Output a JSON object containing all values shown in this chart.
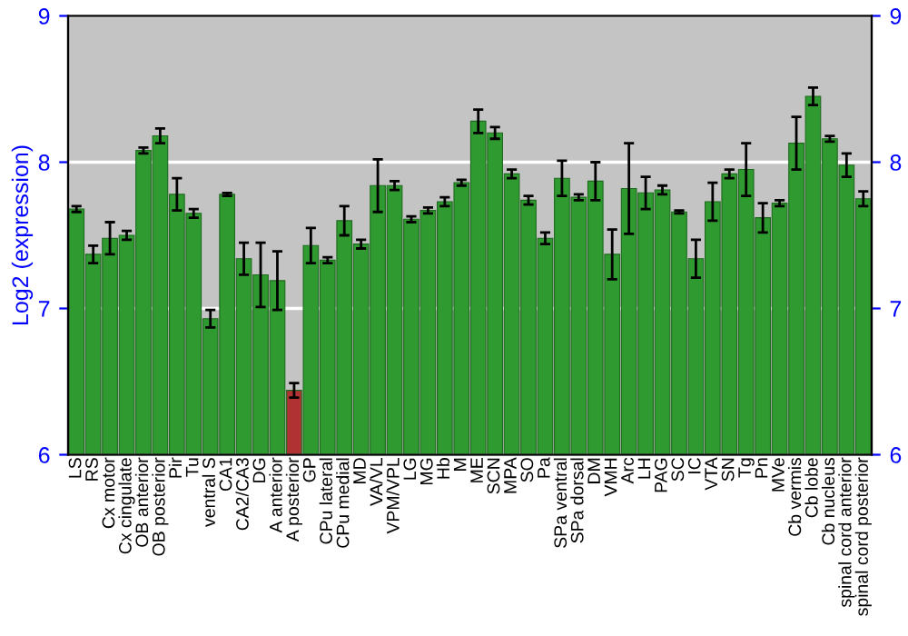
{
  "chart_data": {
    "type": "bar",
    "ylabel": "Log2 (expression)",
    "categories": [
      "LS",
      "RS",
      "Cx motor",
      "Cx cingulate",
      "OB anterior",
      "OB posterior",
      "Pir",
      "Tu",
      "ventral S",
      "CA1",
      "CA2/CA3",
      "DG",
      "A anterior",
      "A posterior",
      "GP",
      "CPu lateral",
      "CPu medial",
      "MD",
      "VA/VL",
      "VPM/VPL",
      "LG",
      "MG",
      "Hb",
      "M",
      "ME",
      "SCN",
      "MPA",
      "SO",
      "Pa",
      "SPa ventral",
      "SPa dorsal",
      "DM",
      "VMH",
      "Arc",
      "LH",
      "PAG",
      "SC",
      "IC",
      "VTA",
      "SN",
      "Tg",
      "Pn",
      "MVe",
      "Cb vermis",
      "Cb lobe",
      "Cb nucleus",
      "spinal cord anterior",
      "spinal cord posterior"
    ],
    "values": [
      7.68,
      7.37,
      7.48,
      7.5,
      8.08,
      8.18,
      7.78,
      7.65,
      6.93,
      7.78,
      7.34,
      7.23,
      7.19,
      6.44,
      7.43,
      7.33,
      7.6,
      7.44,
      7.84,
      7.84,
      7.61,
      7.67,
      7.73,
      7.86,
      8.28,
      8.2,
      7.92,
      7.74,
      7.48,
      7.89,
      7.76,
      7.87,
      7.37,
      7.82,
      7.79,
      7.81,
      7.66,
      7.34,
      7.73,
      7.92,
      7.95,
      7.62,
      7.72,
      8.13,
      8.45,
      8.16,
      7.98,
      7.75
    ],
    "errors": [
      0.02,
      0.06,
      0.11,
      0.03,
      0.02,
      0.05,
      0.11,
      0.03,
      0.06,
      0.01,
      0.11,
      0.22,
      0.2,
      0.05,
      0.12,
      0.02,
      0.1,
      0.03,
      0.18,
      0.03,
      0.02,
      0.02,
      0.03,
      0.02,
      0.08,
      0.04,
      0.03,
      0.03,
      0.04,
      0.12,
      0.02,
      0.13,
      0.17,
      0.31,
      0.11,
      0.03,
      0.01,
      0.13,
      0.13,
      0.03,
      0.18,
      0.1,
      0.02,
      0.18,
      0.06,
      0.02,
      0.08,
      0.05
    ],
    "colors": [
      "#2f9a2f",
      "#2f9a2f",
      "#2f9a2f",
      "#2f9a2f",
      "#2f9a2f",
      "#2f9a2f",
      "#2f9a2f",
      "#2f9a2f",
      "#2f9a2f",
      "#2f9a2f",
      "#2f9a2f",
      "#2f9a2f",
      "#2f9a2f",
      "#b03232",
      "#2f9a2f",
      "#2f9a2f",
      "#2f9a2f",
      "#2f9a2f",
      "#2f9a2f",
      "#2f9a2f",
      "#2f9a2f",
      "#2f9a2f",
      "#2f9a2f",
      "#2f9a2f",
      "#2f9a2f",
      "#2f9a2f",
      "#2f9a2f",
      "#2f9a2f",
      "#2f9a2f",
      "#2f9a2f",
      "#2f9a2f",
      "#2f9a2f",
      "#2f9a2f",
      "#2f9a2f",
      "#2f9a2f",
      "#2f9a2f",
      "#2f9a2f",
      "#2f9a2f",
      "#2f9a2f",
      "#2f9a2f",
      "#2f9a2f",
      "#2f9a2f",
      "#2f9a2f",
      "#2f9a2f",
      "#2f9a2f",
      "#2f9a2f",
      "#2f9a2f",
      "#2f9a2f"
    ],
    "ylim": [
      6,
      9
    ],
    "yticks": [
      6,
      7,
      8,
      9
    ],
    "y2lim": [
      6,
      9
    ],
    "y2ticks": [
      6,
      7,
      8,
      9
    ],
    "grid": "y"
  }
}
